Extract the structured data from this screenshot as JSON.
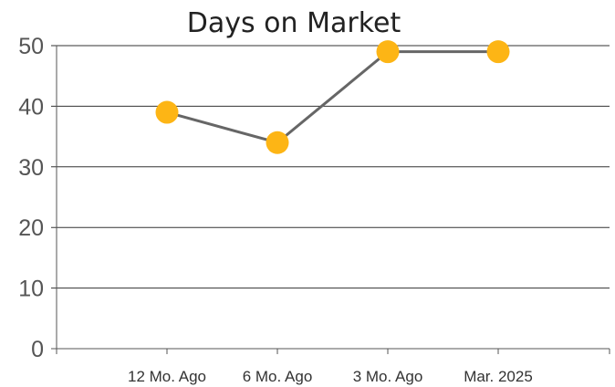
{
  "chart_data": {
    "type": "line",
    "title": "Days on Market",
    "categories": [
      "12 Mo. Ago",
      "6 Mo. Ago",
      "3 Mo. Ago",
      "Mar. 2025"
    ],
    "series": [
      {
        "values": [
          39,
          34,
          49,
          49
        ]
      }
    ],
    "xlabel": "",
    "ylabel": "",
    "ylim": [
      0,
      50
    ],
    "yticks": [
      0,
      10,
      20,
      30,
      40,
      50
    ],
    "grid": true,
    "legend": "none",
    "colors": {
      "line": "#666666",
      "marker": "#FDB515",
      "grid": "#333333",
      "axis": "#555555"
    }
  }
}
